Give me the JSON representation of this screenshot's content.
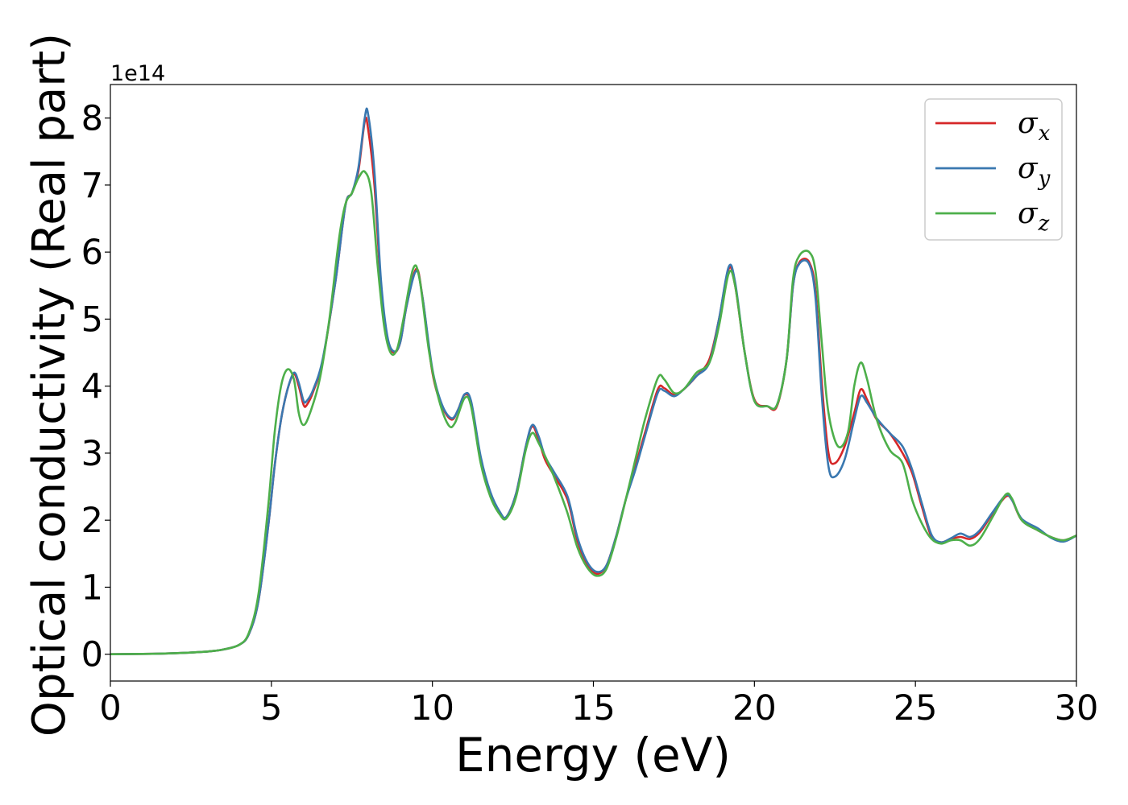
{
  "chart_data": {
    "type": "line",
    "xlabel": "Energy (eV)",
    "ylabel": "Optical conductivity (Real part)",
    "y_scale_label": "1e14",
    "xlim": [
      0,
      30
    ],
    "ylim": [
      -0.4,
      8.5
    ],
    "x_ticks": [
      0,
      5,
      10,
      15,
      20,
      25,
      30
    ],
    "y_ticks": [
      0,
      1,
      2,
      3,
      4,
      5,
      6,
      7,
      8
    ],
    "grid": false,
    "legend_position": "top-right",
    "series": [
      {
        "name": "σx",
        "legend_base": "σ",
        "legend_sub": "x",
        "color": "#d62728",
        "points": [
          [
            0,
            0
          ],
          [
            1,
            0.005
          ],
          [
            2,
            0.015
          ],
          [
            3,
            0.04
          ],
          [
            3.5,
            0.07
          ],
          [
            4,
            0.14
          ],
          [
            4.3,
            0.3
          ],
          [
            4.6,
            0.8
          ],
          [
            4.9,
            1.9
          ],
          [
            5.1,
            2.8
          ],
          [
            5.3,
            3.5
          ],
          [
            5.5,
            3.95
          ],
          [
            5.7,
            4.18
          ],
          [
            5.85,
            4.0
          ],
          [
            6.0,
            3.72
          ],
          [
            6.1,
            3.72
          ],
          [
            6.3,
            3.92
          ],
          [
            6.6,
            4.4
          ],
          [
            7.0,
            5.6
          ],
          [
            7.3,
            6.7
          ],
          [
            7.5,
            6.88
          ],
          [
            7.7,
            7.2
          ],
          [
            7.9,
            7.95
          ],
          [
            8.0,
            7.85
          ],
          [
            8.2,
            7.0
          ],
          [
            8.4,
            5.5
          ],
          [
            8.6,
            4.7
          ],
          [
            8.8,
            4.5
          ],
          [
            9.0,
            4.65
          ],
          [
            9.2,
            5.2
          ],
          [
            9.5,
            5.75
          ],
          [
            9.7,
            5.3
          ],
          [
            10.0,
            4.2
          ],
          [
            10.3,
            3.7
          ],
          [
            10.6,
            3.5
          ],
          [
            10.8,
            3.65
          ],
          [
            11.0,
            3.87
          ],
          [
            11.2,
            3.75
          ],
          [
            11.5,
            2.9
          ],
          [
            11.8,
            2.4
          ],
          [
            12.1,
            2.1
          ],
          [
            12.3,
            2.05
          ],
          [
            12.6,
            2.4
          ],
          [
            12.9,
            3.1
          ],
          [
            13.1,
            3.4
          ],
          [
            13.3,
            3.2
          ],
          [
            13.5,
            2.9
          ],
          [
            13.8,
            2.65
          ],
          [
            14.2,
            2.3
          ],
          [
            14.5,
            1.7
          ],
          [
            14.8,
            1.35
          ],
          [
            15.1,
            1.2
          ],
          [
            15.4,
            1.32
          ],
          [
            15.7,
            1.75
          ],
          [
            16.0,
            2.3
          ],
          [
            16.3,
            2.8
          ],
          [
            16.6,
            3.3
          ],
          [
            17.0,
            3.95
          ],
          [
            17.2,
            3.97
          ],
          [
            17.5,
            3.87
          ],
          [
            17.8,
            3.95
          ],
          [
            18.2,
            4.15
          ],
          [
            18.6,
            4.4
          ],
          [
            18.9,
            5.0
          ],
          [
            19.2,
            5.75
          ],
          [
            19.4,
            5.5
          ],
          [
            19.7,
            4.5
          ],
          [
            20.0,
            3.8
          ],
          [
            20.4,
            3.7
          ],
          [
            20.7,
            3.7
          ],
          [
            21.0,
            4.4
          ],
          [
            21.2,
            5.5
          ],
          [
            21.4,
            5.85
          ],
          [
            21.7,
            5.85
          ],
          [
            21.9,
            5.4
          ],
          [
            22.1,
            4.0
          ],
          [
            22.3,
            3.0
          ],
          [
            22.5,
            2.85
          ],
          [
            22.8,
            3.1
          ],
          [
            23.1,
            3.6
          ],
          [
            23.3,
            3.95
          ],
          [
            23.5,
            3.8
          ],
          [
            23.8,
            3.5
          ],
          [
            24.2,
            3.3
          ],
          [
            24.6,
            3.0
          ],
          [
            24.9,
            2.7
          ],
          [
            25.2,
            2.2
          ],
          [
            25.5,
            1.75
          ],
          [
            25.8,
            1.67
          ],
          [
            26.1,
            1.72
          ],
          [
            26.4,
            1.75
          ],
          [
            26.7,
            1.72
          ],
          [
            27.0,
            1.82
          ],
          [
            27.4,
            2.1
          ],
          [
            27.8,
            2.35
          ],
          [
            28.0,
            2.3
          ],
          [
            28.3,
            2.0
          ],
          [
            28.8,
            1.85
          ],
          [
            29.2,
            1.75
          ],
          [
            29.6,
            1.7
          ],
          [
            30,
            1.77
          ]
        ]
      },
      {
        "name": "σy",
        "legend_base": "σ",
        "legend_sub": "y",
        "color": "#3a78b0",
        "points": [
          [
            0,
            0
          ],
          [
            1,
            0.005
          ],
          [
            2,
            0.015
          ],
          [
            3,
            0.04
          ],
          [
            3.5,
            0.07
          ],
          [
            4,
            0.14
          ],
          [
            4.3,
            0.3
          ],
          [
            4.6,
            0.8
          ],
          [
            4.9,
            1.9
          ],
          [
            5.1,
            2.8
          ],
          [
            5.3,
            3.5
          ],
          [
            5.5,
            3.95
          ],
          [
            5.7,
            4.2
          ],
          [
            5.85,
            4.05
          ],
          [
            6.0,
            3.78
          ],
          [
            6.1,
            3.78
          ],
          [
            6.3,
            3.95
          ],
          [
            6.6,
            4.42
          ],
          [
            7.0,
            5.6
          ],
          [
            7.3,
            6.7
          ],
          [
            7.5,
            6.88
          ],
          [
            7.7,
            7.25
          ],
          [
            7.9,
            8.0
          ],
          [
            8.0,
            8.07
          ],
          [
            8.2,
            7.2
          ],
          [
            8.4,
            5.6
          ],
          [
            8.6,
            4.75
          ],
          [
            8.8,
            4.52
          ],
          [
            9.0,
            4.65
          ],
          [
            9.2,
            5.2
          ],
          [
            9.5,
            5.72
          ],
          [
            9.7,
            5.3
          ],
          [
            10.0,
            4.25
          ],
          [
            10.3,
            3.72
          ],
          [
            10.6,
            3.52
          ],
          [
            10.8,
            3.65
          ],
          [
            11.0,
            3.88
          ],
          [
            11.2,
            3.78
          ],
          [
            11.5,
            2.95
          ],
          [
            11.8,
            2.42
          ],
          [
            12.1,
            2.12
          ],
          [
            12.3,
            2.05
          ],
          [
            12.6,
            2.4
          ],
          [
            12.9,
            3.1
          ],
          [
            13.1,
            3.42
          ],
          [
            13.3,
            3.25
          ],
          [
            13.5,
            2.95
          ],
          [
            13.8,
            2.7
          ],
          [
            14.2,
            2.35
          ],
          [
            14.5,
            1.75
          ],
          [
            14.8,
            1.38
          ],
          [
            15.1,
            1.23
          ],
          [
            15.4,
            1.32
          ],
          [
            15.7,
            1.75
          ],
          [
            16.0,
            2.3
          ],
          [
            16.3,
            2.75
          ],
          [
            16.6,
            3.25
          ],
          [
            17.0,
            3.9
          ],
          [
            17.2,
            3.93
          ],
          [
            17.5,
            3.85
          ],
          [
            17.8,
            3.95
          ],
          [
            18.2,
            4.15
          ],
          [
            18.6,
            4.35
          ],
          [
            18.9,
            5.0
          ],
          [
            19.2,
            5.78
          ],
          [
            19.4,
            5.55
          ],
          [
            19.7,
            4.5
          ],
          [
            20.0,
            3.78
          ],
          [
            20.4,
            3.7
          ],
          [
            20.7,
            3.72
          ],
          [
            21.0,
            4.4
          ],
          [
            21.2,
            5.5
          ],
          [
            21.4,
            5.83
          ],
          [
            21.7,
            5.82
          ],
          [
            21.9,
            5.3
          ],
          [
            22.1,
            3.8
          ],
          [
            22.3,
            2.8
          ],
          [
            22.5,
            2.65
          ],
          [
            22.8,
            2.9
          ],
          [
            23.1,
            3.5
          ],
          [
            23.3,
            3.85
          ],
          [
            23.5,
            3.75
          ],
          [
            23.8,
            3.52
          ],
          [
            24.2,
            3.3
          ],
          [
            24.6,
            3.1
          ],
          [
            24.9,
            2.75
          ],
          [
            25.2,
            2.25
          ],
          [
            25.5,
            1.78
          ],
          [
            25.8,
            1.67
          ],
          [
            26.1,
            1.73
          ],
          [
            26.4,
            1.8
          ],
          [
            26.7,
            1.75
          ],
          [
            27.0,
            1.85
          ],
          [
            27.4,
            2.12
          ],
          [
            27.8,
            2.37
          ],
          [
            28.0,
            2.3
          ],
          [
            28.3,
            2.02
          ],
          [
            28.8,
            1.88
          ],
          [
            29.2,
            1.74
          ],
          [
            29.6,
            1.68
          ],
          [
            30,
            1.77
          ]
        ]
      },
      {
        "name": "σz",
        "legend_base": "σ",
        "legend_sub": "z",
        "color": "#4daf4a",
        "points": [
          [
            0,
            0
          ],
          [
            1,
            0.005
          ],
          [
            2,
            0.015
          ],
          [
            3,
            0.04
          ],
          [
            3.5,
            0.07
          ],
          [
            4,
            0.14
          ],
          [
            4.3,
            0.32
          ],
          [
            4.6,
            0.9
          ],
          [
            4.9,
            2.2
          ],
          [
            5.1,
            3.3
          ],
          [
            5.3,
            4.0
          ],
          [
            5.5,
            4.25
          ],
          [
            5.7,
            4.1
          ],
          [
            5.85,
            3.6
          ],
          [
            6.0,
            3.42
          ],
          [
            6.2,
            3.6
          ],
          [
            6.5,
            4.1
          ],
          [
            6.8,
            5.0
          ],
          [
            7.1,
            6.2
          ],
          [
            7.3,
            6.72
          ],
          [
            7.5,
            6.88
          ],
          [
            7.7,
            7.1
          ],
          [
            7.9,
            7.2
          ],
          [
            8.1,
            6.9
          ],
          [
            8.3,
            5.8
          ],
          [
            8.5,
            4.9
          ],
          [
            8.7,
            4.5
          ],
          [
            8.9,
            4.55
          ],
          [
            9.1,
            5.0
          ],
          [
            9.4,
            5.75
          ],
          [
            9.6,
            5.6
          ],
          [
            9.9,
            4.5
          ],
          [
            10.2,
            3.8
          ],
          [
            10.5,
            3.42
          ],
          [
            10.7,
            3.45
          ],
          [
            11.0,
            3.82
          ],
          [
            11.2,
            3.7
          ],
          [
            11.5,
            2.85
          ],
          [
            11.8,
            2.35
          ],
          [
            12.1,
            2.08
          ],
          [
            12.3,
            2.03
          ],
          [
            12.6,
            2.35
          ],
          [
            12.9,
            3.05
          ],
          [
            13.1,
            3.3
          ],
          [
            13.3,
            3.15
          ],
          [
            13.6,
            2.85
          ],
          [
            13.9,
            2.5
          ],
          [
            14.2,
            2.1
          ],
          [
            14.5,
            1.6
          ],
          [
            14.8,
            1.3
          ],
          [
            15.1,
            1.17
          ],
          [
            15.4,
            1.27
          ],
          [
            15.7,
            1.72
          ],
          [
            16.0,
            2.3
          ],
          [
            16.3,
            2.9
          ],
          [
            16.6,
            3.5
          ],
          [
            17.0,
            4.12
          ],
          [
            17.2,
            4.1
          ],
          [
            17.5,
            3.9
          ],
          [
            17.8,
            3.95
          ],
          [
            18.2,
            4.2
          ],
          [
            18.6,
            4.35
          ],
          [
            18.9,
            4.9
          ],
          [
            19.2,
            5.68
          ],
          [
            19.4,
            5.5
          ],
          [
            19.7,
            4.5
          ],
          [
            20.0,
            3.78
          ],
          [
            20.4,
            3.7
          ],
          [
            20.7,
            3.72
          ],
          [
            21.0,
            4.4
          ],
          [
            21.2,
            5.6
          ],
          [
            21.4,
            5.95
          ],
          [
            21.7,
            6.0
          ],
          [
            21.9,
            5.7
          ],
          [
            22.1,
            4.6
          ],
          [
            22.3,
            3.6
          ],
          [
            22.6,
            3.1
          ],
          [
            22.9,
            3.3
          ],
          [
            23.1,
            4.0
          ],
          [
            23.3,
            4.35
          ],
          [
            23.5,
            4.1
          ],
          [
            23.8,
            3.5
          ],
          [
            24.2,
            3.05
          ],
          [
            24.6,
            2.85
          ],
          [
            24.9,
            2.3
          ],
          [
            25.2,
            1.95
          ],
          [
            25.5,
            1.72
          ],
          [
            25.8,
            1.65
          ],
          [
            26.1,
            1.7
          ],
          [
            26.4,
            1.7
          ],
          [
            26.7,
            1.62
          ],
          [
            27.0,
            1.72
          ],
          [
            27.4,
            2.05
          ],
          [
            27.8,
            2.38
          ],
          [
            28.0,
            2.32
          ],
          [
            28.3,
            2.0
          ],
          [
            28.8,
            1.85
          ],
          [
            29.2,
            1.75
          ],
          [
            29.6,
            1.7
          ],
          [
            30,
            1.77
          ]
        ]
      }
    ]
  }
}
